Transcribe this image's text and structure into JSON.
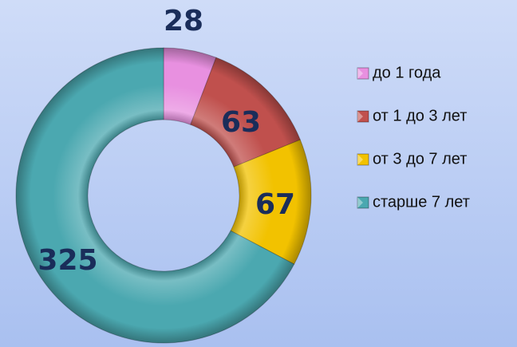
{
  "chart_data": {
    "type": "donut",
    "categories": [
      "до 1 года",
      "от 1 до 3 лет",
      "от 3 до 7 лет",
      "старше 7 лет"
    ],
    "values": [
      28,
      63,
      67,
      325
    ],
    "colors": [
      "#e890e0",
      "#c0504d",
      "#f2c200",
      "#4ba8b0"
    ],
    "legend": "right"
  }
}
